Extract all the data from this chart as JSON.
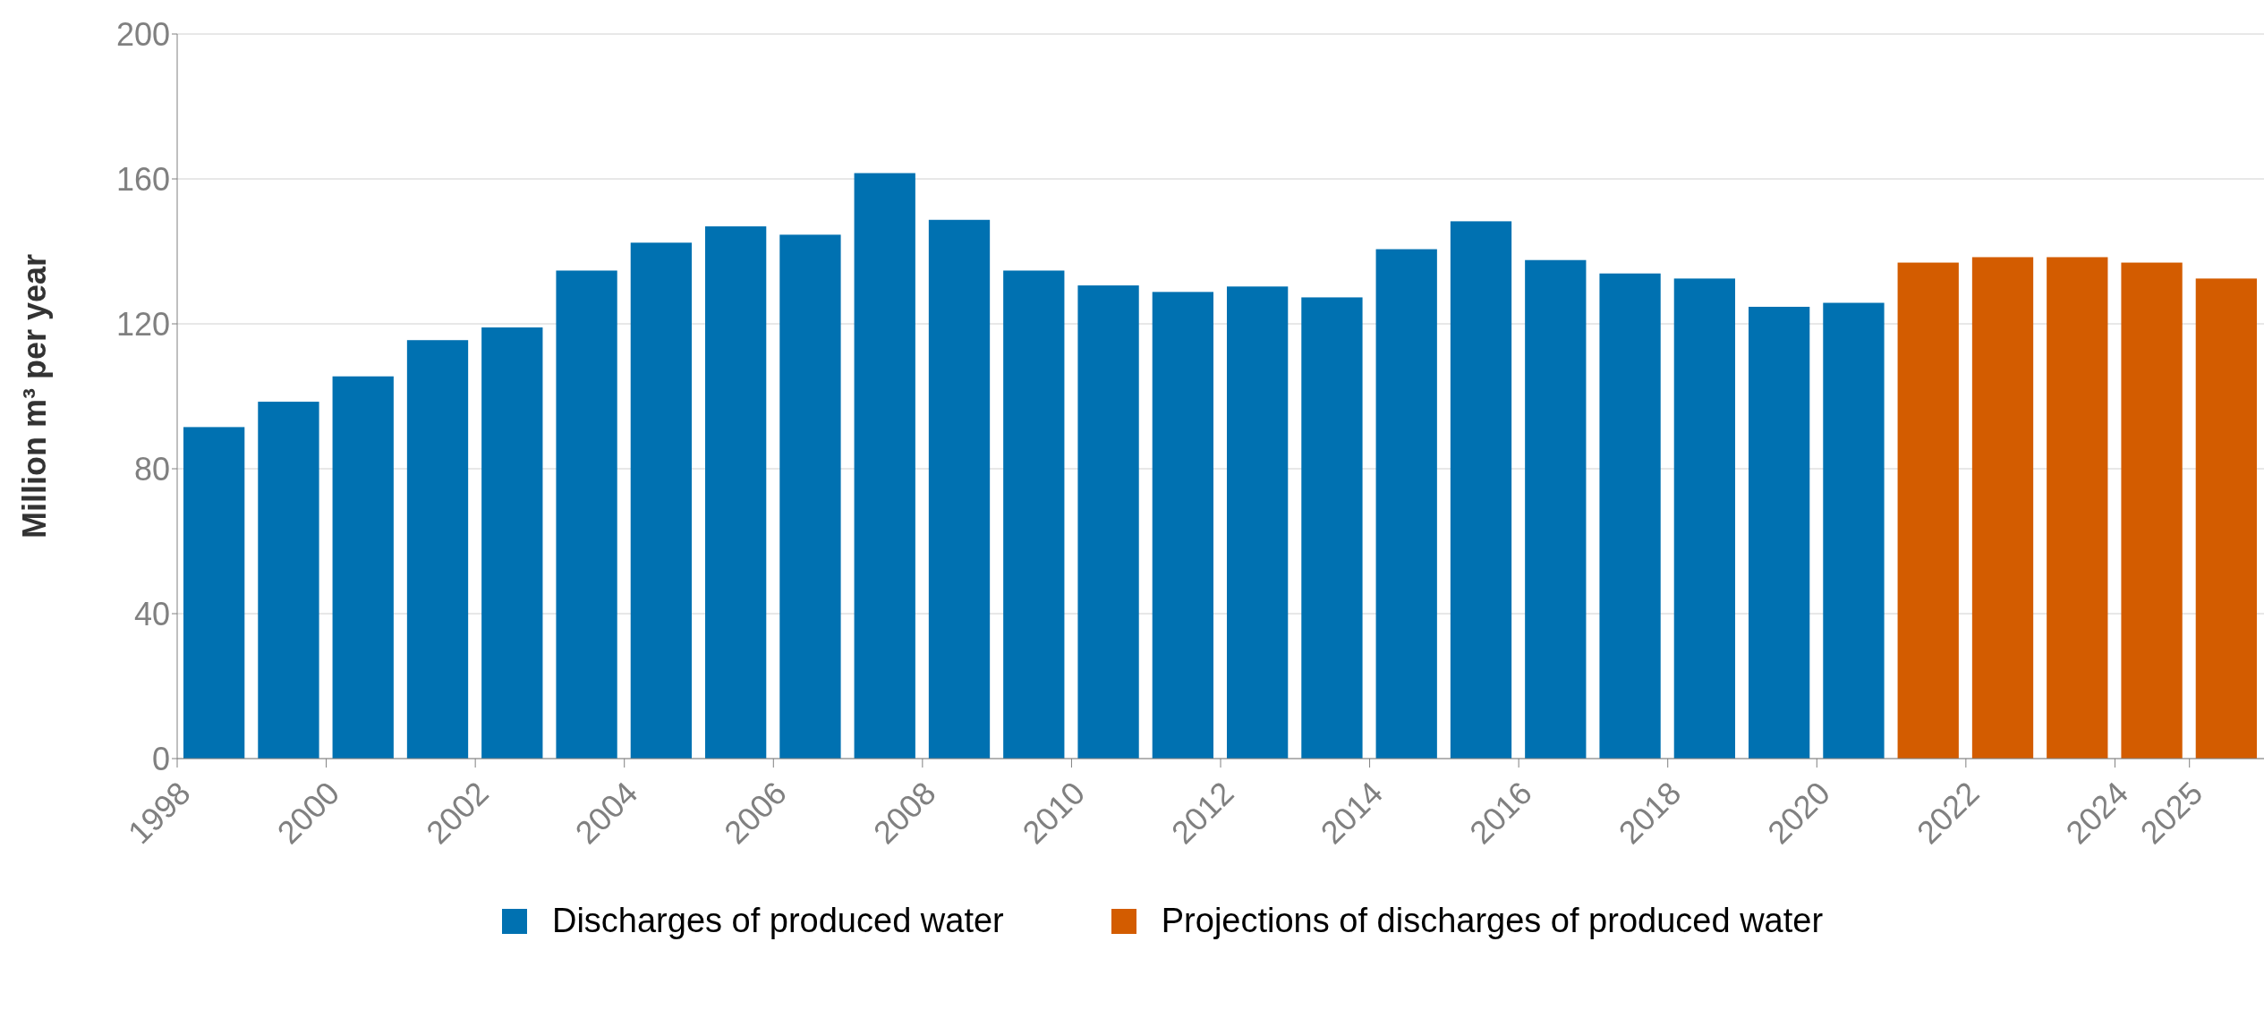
{
  "chart_data": {
    "type": "bar",
    "ylabel": "Million m³ per year",
    "x": [
      1998,
      1999,
      2000,
      2001,
      2002,
      2003,
      2004,
      2005,
      2006,
      2007,
      2008,
      2009,
      2010,
      2011,
      2012,
      2013,
      2014,
      2015,
      2016,
      2017,
      2018,
      2019,
      2020,
      2021,
      2022,
      2023,
      2024,
      2025
    ],
    "series": [
      {
        "name": "Discharges of produced water",
        "color": "#0071b1",
        "values": [
          91.5,
          98.5,
          105.5,
          115.5,
          119,
          134.7,
          142.4,
          146.9,
          144.6,
          161.6,
          148.7,
          134.7,
          130.6,
          128.8,
          130.3,
          127.3,
          140.6,
          148.3,
          137.6,
          133.9,
          132.5,
          124.7,
          125.8,
          null,
          null,
          null,
          null,
          null
        ]
      },
      {
        "name": "Projections of discharges of produced water",
        "color": "#d35c00",
        "values": [
          null,
          null,
          null,
          null,
          null,
          null,
          null,
          null,
          null,
          null,
          null,
          null,
          null,
          null,
          null,
          null,
          null,
          null,
          null,
          null,
          null,
          null,
          null,
          136.9,
          138.4,
          138.4,
          136.9,
          132.5
        ]
      }
    ],
    "xlim": [
      1998,
      2026
    ],
    "xticks": [
      1998,
      2000,
      2002,
      2004,
      2006,
      2008,
      2010,
      2012,
      2014,
      2016,
      2018,
      2020,
      2022,
      2024,
      2025
    ],
    "ylim": [
      0,
      200
    ],
    "yticks": [
      0,
      40,
      80,
      120,
      160,
      200
    ],
    "grid": "y",
    "legend": "bottom"
  }
}
